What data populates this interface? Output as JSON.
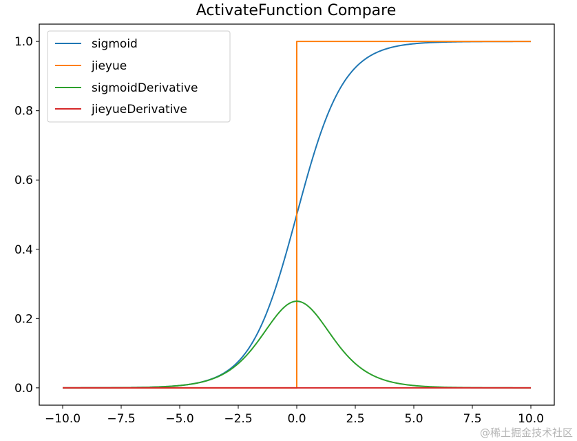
{
  "chart_data": {
    "type": "line",
    "title": "ActivateFunction Compare",
    "xlabel": "",
    "ylabel": "",
    "xlim": [
      -11,
      11
    ],
    "ylim": [
      -0.05,
      1.05
    ],
    "x_ticks": [
      -10.0,
      -7.5,
      -5.0,
      -2.5,
      0.0,
      2.5,
      5.0,
      7.5,
      10.0
    ],
    "x_tick_labels": [
      "−10.0",
      "−7.5",
      "−5.0",
      "−2.5",
      "0.0",
      "2.5",
      "5.0",
      "7.5",
      "10.0"
    ],
    "y_ticks": [
      0.0,
      0.2,
      0.4,
      0.6,
      0.8,
      1.0
    ],
    "y_tick_labels": [
      "0.0",
      "0.2",
      "0.4",
      "0.6",
      "0.8",
      "1.0"
    ],
    "legend_position": "top-left",
    "grid": false,
    "series": [
      {
        "name": "sigmoid",
        "color": "#1f77b4",
        "x": [
          -10,
          -8,
          -6,
          -5,
          -4,
          -3,
          -2,
          -1.5,
          -1,
          -0.5,
          0,
          0.5,
          1,
          1.5,
          2,
          3,
          4,
          5,
          6,
          8,
          10
        ],
        "y": [
          4.54e-05,
          0.000335,
          0.00247,
          0.00669,
          0.018,
          0.0474,
          0.1192,
          0.1824,
          0.2689,
          0.3775,
          0.5,
          0.6225,
          0.7311,
          0.8176,
          0.8808,
          0.9526,
          0.982,
          0.9933,
          0.9975,
          0.9997,
          1.0
        ]
      },
      {
        "name": "jieyue",
        "color": "#ff7f0e",
        "x": [
          -10,
          0,
          0,
          10
        ],
        "y": [
          0,
          0,
          1,
          1
        ]
      },
      {
        "name": "sigmoidDerivative",
        "color": "#2ca02c",
        "x": [
          -10,
          -8,
          -6,
          -5,
          -4,
          -3,
          -2,
          -1.5,
          -1,
          -0.5,
          0,
          0.5,
          1,
          1.5,
          2,
          3,
          4,
          5,
          6,
          8,
          10
        ],
        "y": [
          4.54e-05,
          0.000335,
          0.00247,
          0.00665,
          0.0177,
          0.0452,
          0.105,
          0.1491,
          0.1966,
          0.235,
          0.25,
          0.235,
          0.1966,
          0.1491,
          0.105,
          0.0452,
          0.0177,
          0.00665,
          0.00247,
          0.000335,
          4.54e-05
        ]
      },
      {
        "name": "jieyueDerivative",
        "color": "#d62728",
        "x": [
          -10,
          10
        ],
        "y": [
          0,
          0
        ]
      }
    ]
  },
  "watermark": "@稀土掘金技术社区"
}
